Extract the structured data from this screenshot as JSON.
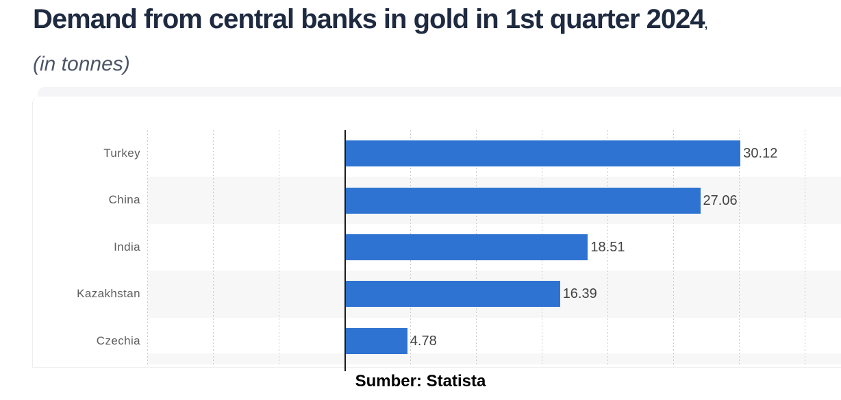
{
  "header": {
    "title": "Demand from central banks in gold in 1st quarter 2024",
    "title_suffix": ",",
    "subtitle": "(in tonnes)"
  },
  "footer": {
    "source": "Sumber: Statista"
  },
  "chart_data": {
    "type": "bar",
    "orientation": "horizontal",
    "title": "Demand from central banks in gold in 1st quarter 2024",
    "subtitle": "(in tonnes)",
    "categories": [
      "Turkey",
      "China",
      "India",
      "Kazakhstan",
      "Czechia"
    ],
    "values": [
      30.12,
      27.06,
      18.51,
      16.39,
      4.78
    ],
    "value_labels": [
      "30.12",
      "27.06",
      "18.51",
      "16.39",
      "4.78"
    ],
    "unit": "tonnes",
    "xlim": [
      -15,
      35
    ],
    "grid_step": 5,
    "grid": "vertical-dotted",
    "zero_line": true,
    "legend": "none",
    "zebra_rows": [
      1,
      3
    ],
    "zebra_partial_bottom": true,
    "source": "Sumber: Statista",
    "colors": {
      "bar": "#2e73d1",
      "zebra": "#f7f7f8",
      "grid": "#c9c9c9",
      "zero_line": "#1a1a1a",
      "category_label": "#5d5d5d",
      "value_label": "#434343",
      "title": "#1e2a40",
      "subtitle": "#4c5565",
      "source_text": "#000000"
    }
  }
}
